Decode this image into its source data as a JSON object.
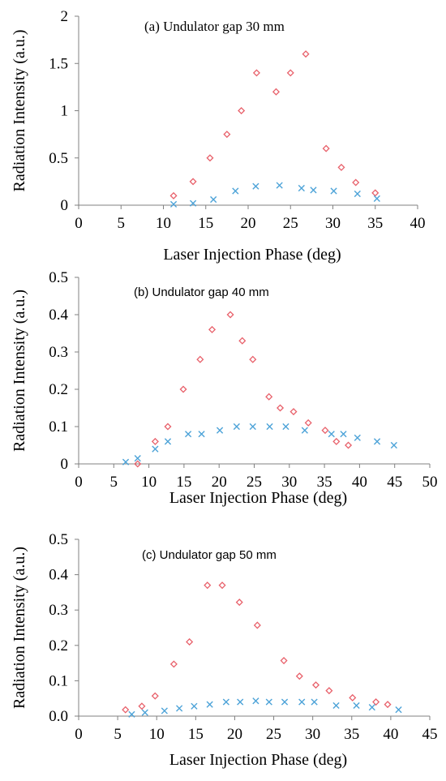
{
  "chart_data": [
    {
      "type": "scatter",
      "title": "(a) Undulator gap 30 mm",
      "xlabel": "Laser Injection Phase (deg)",
      "ylabel": "Radiation Intensity (a.u.)",
      "xlim": [
        0,
        40
      ],
      "ylim": [
        0,
        2
      ],
      "x_ticks": [
        "0",
        "5",
        "10",
        "15",
        "20",
        "25",
        "30",
        "35",
        "40"
      ],
      "y_ticks": [
        "0",
        "0.5",
        "1",
        "1.5",
        "2"
      ],
      "grid": false,
      "series": [
        {
          "marker": "diamond",
          "color": "#e8606a",
          "points": [
            [
              11.2,
              0.1
            ],
            [
              13.5,
              0.25
            ],
            [
              15.5,
              0.5
            ],
            [
              17.5,
              0.75
            ],
            [
              19.2,
              1.0
            ],
            [
              21.0,
              1.4
            ],
            [
              23.3,
              1.2
            ],
            [
              25.0,
              1.4
            ],
            [
              26.8,
              1.6
            ],
            [
              29.2,
              0.6
            ],
            [
              31.0,
              0.4
            ],
            [
              32.7,
              0.24
            ],
            [
              35.0,
              0.13
            ]
          ]
        },
        {
          "marker": "x",
          "color": "#4da3d8",
          "points": [
            [
              11.2,
              0.01
            ],
            [
              13.5,
              0.02
            ],
            [
              15.9,
              0.06
            ],
            [
              18.5,
              0.15
            ],
            [
              20.9,
              0.2
            ],
            [
              23.7,
              0.21
            ],
            [
              26.3,
              0.18
            ],
            [
              27.7,
              0.16
            ],
            [
              30.1,
              0.15
            ],
            [
              32.9,
              0.12
            ],
            [
              35.2,
              0.07
            ]
          ]
        }
      ]
    },
    {
      "type": "scatter",
      "title": "(b) Undulator gap 40 mm",
      "xlabel": "Laser Injection Phase (deg)",
      "ylabel": "Radiation Intensity (a.u.)",
      "xlim": [
        0,
        50
      ],
      "ylim": [
        0,
        0.5
      ],
      "x_ticks": [
        "0",
        "5",
        "10",
        "15",
        "20",
        "25",
        "30",
        "35",
        "40",
        "45",
        "50"
      ],
      "y_ticks": [
        "0",
        "0.1",
        "0.2",
        "0.3",
        "0.4",
        "0.5"
      ],
      "grid": false,
      "series": [
        {
          "marker": "diamond",
          "color": "#e8606a",
          "points": [
            [
              8.4,
              0.0
            ],
            [
              10.9,
              0.06
            ],
            [
              12.7,
              0.1
            ],
            [
              14.9,
              0.2
            ],
            [
              17.3,
              0.28
            ],
            [
              19.0,
              0.36
            ],
            [
              21.6,
              0.4
            ],
            [
              23.3,
              0.33
            ],
            [
              24.8,
              0.28
            ],
            [
              27.1,
              0.18
            ],
            [
              28.7,
              0.15
            ],
            [
              30.6,
              0.14
            ],
            [
              32.7,
              0.11
            ],
            [
              35.1,
              0.09
            ],
            [
              36.7,
              0.06
            ],
            [
              38.4,
              0.05
            ]
          ]
        },
        {
          "marker": "x",
          "color": "#4da3d8",
          "points": [
            [
              6.7,
              0.005
            ],
            [
              8.4,
              0.015
            ],
            [
              10.9,
              0.04
            ],
            [
              12.7,
              0.06
            ],
            [
              15.6,
              0.08
            ],
            [
              17.5,
              0.08
            ],
            [
              20.1,
              0.09
            ],
            [
              22.5,
              0.1
            ],
            [
              24.8,
              0.1
            ],
            [
              27.2,
              0.1
            ],
            [
              29.5,
              0.1
            ],
            [
              32.2,
              0.09
            ],
            [
              36.0,
              0.08
            ],
            [
              37.7,
              0.08
            ],
            [
              39.7,
              0.07
            ],
            [
              42.5,
              0.06
            ],
            [
              44.9,
              0.05
            ]
          ]
        }
      ]
    },
    {
      "type": "scatter",
      "title": "(c) Undulator gap 50 mm",
      "xlabel": "Laser Injection Phase (deg)",
      "ylabel": "Radiation Intensity (a.u.)",
      "xlim": [
        0,
        45
      ],
      "ylim": [
        0,
        0.5
      ],
      "x_ticks": [
        "0",
        "5",
        "10",
        "15",
        "20",
        "25",
        "30",
        "35",
        "40",
        "45"
      ],
      "y_ticks": [
        "0.0",
        "0.1",
        "0.2",
        "0.3",
        "0.4",
        "0.5"
      ],
      "grid": false,
      "series": [
        {
          "marker": "diamond",
          "color": "#e8606a",
          "points": [
            [
              6.0,
              0.018
            ],
            [
              8.1,
              0.028
            ],
            [
              9.8,
              0.057
            ],
            [
              12.2,
              0.147
            ],
            [
              14.2,
              0.21
            ],
            [
              16.5,
              0.37
            ],
            [
              18.4,
              0.37
            ],
            [
              20.6,
              0.322
            ],
            [
              22.9,
              0.257
            ],
            [
              26.3,
              0.157
            ],
            [
              28.3,
              0.113
            ],
            [
              30.4,
              0.088
            ],
            [
              32.1,
              0.072
            ],
            [
              35.1,
              0.052
            ],
            [
              38.1,
              0.04
            ],
            [
              39.6,
              0.033
            ]
          ]
        },
        {
          "marker": "x",
          "color": "#4da3d8",
          "points": [
            [
              6.8,
              0.005
            ],
            [
              8.5,
              0.01
            ],
            [
              11.0,
              0.015
            ],
            [
              12.9,
              0.022
            ],
            [
              14.8,
              0.028
            ],
            [
              16.8,
              0.033
            ],
            [
              18.9,
              0.04
            ],
            [
              20.7,
              0.04
            ],
            [
              22.7,
              0.043
            ],
            [
              24.4,
              0.04
            ],
            [
              26.4,
              0.04
            ],
            [
              28.6,
              0.04
            ],
            [
              30.2,
              0.04
            ],
            [
              33.0,
              0.03
            ],
            [
              35.6,
              0.03
            ],
            [
              37.6,
              0.025
            ],
            [
              41.0,
              0.018
            ]
          ]
        }
      ]
    }
  ]
}
